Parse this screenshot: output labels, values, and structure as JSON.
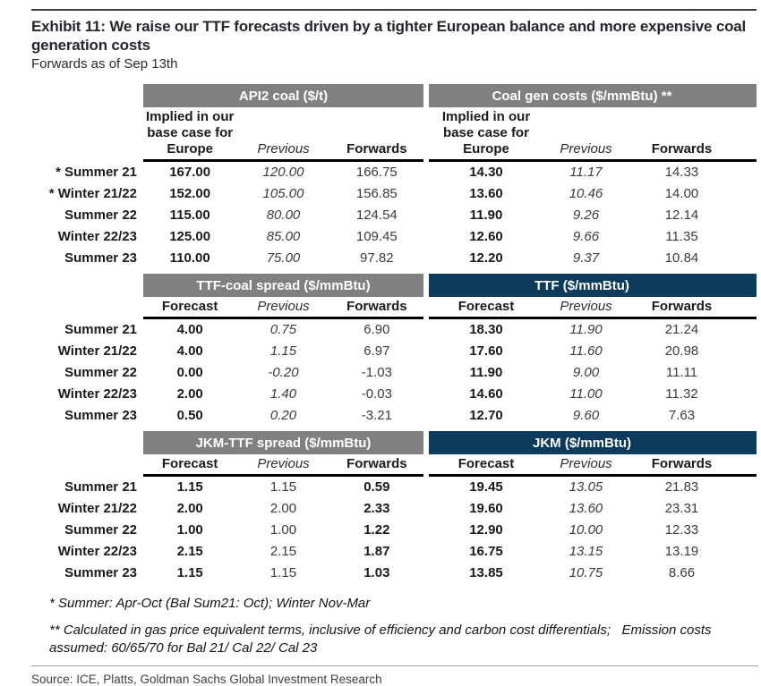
{
  "exhibit": {
    "title_line1": "Exhibit 11: We raise our TTF forecasts driven by a tighter European balance and more expensive coal",
    "title_line2": "generation costs",
    "subtitle": "Forwards as of Sep 13th"
  },
  "sections": [
    {
      "row_labels": [
        "* Summer 21",
        "* Winter 21/22",
        "Summer 22",
        "Winter 22/23",
        "Summer 23"
      ],
      "left": {
        "title": "API2 coal ($/t)",
        "header_style": "gray",
        "col_headers": [
          "Implied in our\nbase case for\nEurope",
          "Previous",
          "Forwards"
        ],
        "rows": [
          [
            "167.00",
            "120.00",
            "166.75"
          ],
          [
            "152.00",
            "105.00",
            "156.85"
          ],
          [
            "115.00",
            "80.00",
            "124.54"
          ],
          [
            "125.00",
            "85.00",
            "109.45"
          ],
          [
            "110.00",
            "75.00",
            "97.82"
          ]
        ]
      },
      "right": {
        "title": "Coal gen costs ($/mmBtu) **",
        "header_style": "gray",
        "col_headers": [
          "Implied in our\nbase case for\nEurope",
          "Previous",
          "Forwards"
        ],
        "rows": [
          [
            "14.30",
            "11.17",
            "14.33"
          ],
          [
            "13.60",
            "10.46",
            "14.00"
          ],
          [
            "11.90",
            "9.26",
            "12.14"
          ],
          [
            "12.60",
            "9.66",
            "11.35"
          ],
          [
            "12.20",
            "9.37",
            "10.84"
          ]
        ]
      }
    },
    {
      "row_labels": [
        "Summer 21",
        "Winter 21/22",
        "Summer 22",
        "Winter 22/23",
        "Summer 23"
      ],
      "left": {
        "title": "TTF-coal spread ($/mmBtu)",
        "header_style": "gray",
        "col_headers": [
          "Forecast",
          "Previous",
          "Forwards"
        ],
        "rows": [
          [
            "4.00",
            "0.75",
            "6.90"
          ],
          [
            "4.00",
            "1.15",
            "6.97"
          ],
          [
            "0.00",
            "-0.20",
            "-1.03"
          ],
          [
            "2.00",
            "1.40",
            "-0.03"
          ],
          [
            "0.50",
            "0.20",
            "-3.21"
          ]
        ]
      },
      "right": {
        "title": "TTF ($/mmBtu)",
        "header_style": "navy",
        "col_headers": [
          "Forecast",
          "Previous",
          "Forwards"
        ],
        "rows": [
          [
            "18.30",
            "11.90",
            "21.24"
          ],
          [
            "17.60",
            "11.60",
            "20.98"
          ],
          [
            "11.90",
            "9.00",
            "11.11"
          ],
          [
            "14.60",
            "11.00",
            "11.32"
          ],
          [
            "12.70",
            "9.60",
            "7.63"
          ]
        ]
      }
    },
    {
      "row_labels": [
        "Summer 21",
        "Winter 21/22",
        "Summer 22",
        "Winter 22/23",
        "Summer 23"
      ],
      "left": {
        "title": "JKM-TTF spread ($/mmBtu)",
        "header_style": "gray",
        "col_headers": [
          "Forecast",
          "Previous",
          "Forwards"
        ],
        "rows": [
          [
            "1.15",
            "1.15",
            "0.59"
          ],
          [
            "2.00",
            "2.00",
            "2.33"
          ],
          [
            "1.00",
            "1.00",
            "1.22"
          ],
          [
            "2.15",
            "2.15",
            "1.87"
          ],
          [
            "1.15",
            "1.15",
            "1.03"
          ]
        ]
      },
      "right": {
        "title": "JKM ($/mmBtu)",
        "header_style": "navy",
        "col_headers": [
          "Forecast",
          "Previous",
          "Forwards"
        ],
        "rows": [
          [
            "19.45",
            "13.05",
            "21.83"
          ],
          [
            "19.60",
            "13.60",
            "23.31"
          ],
          [
            "12.90",
            "10.00",
            "12.33"
          ],
          [
            "16.75",
            "13.15",
            "13.19"
          ],
          [
            "13.85",
            "10.75",
            "8.66"
          ]
        ]
      }
    }
  ],
  "footnotes": [
    "* Summer: Apr-Oct (Bal Sum21: Oct); Winter Nov-Mar",
    "** Calculated in gas price equivalent terms, inclusive of efficiency and carbon cost differentials;   Emission costs assumed: 60/65/70 for Bal 21/ Cal 22/ Cal 23"
  ],
  "source": "Source: ICE, Platts, Goldman Sachs Global Investment Research",
  "colors": {
    "gray_header": "#808080",
    "navy_header": "#0d3b5c",
    "title_text": "#25272e"
  }
}
